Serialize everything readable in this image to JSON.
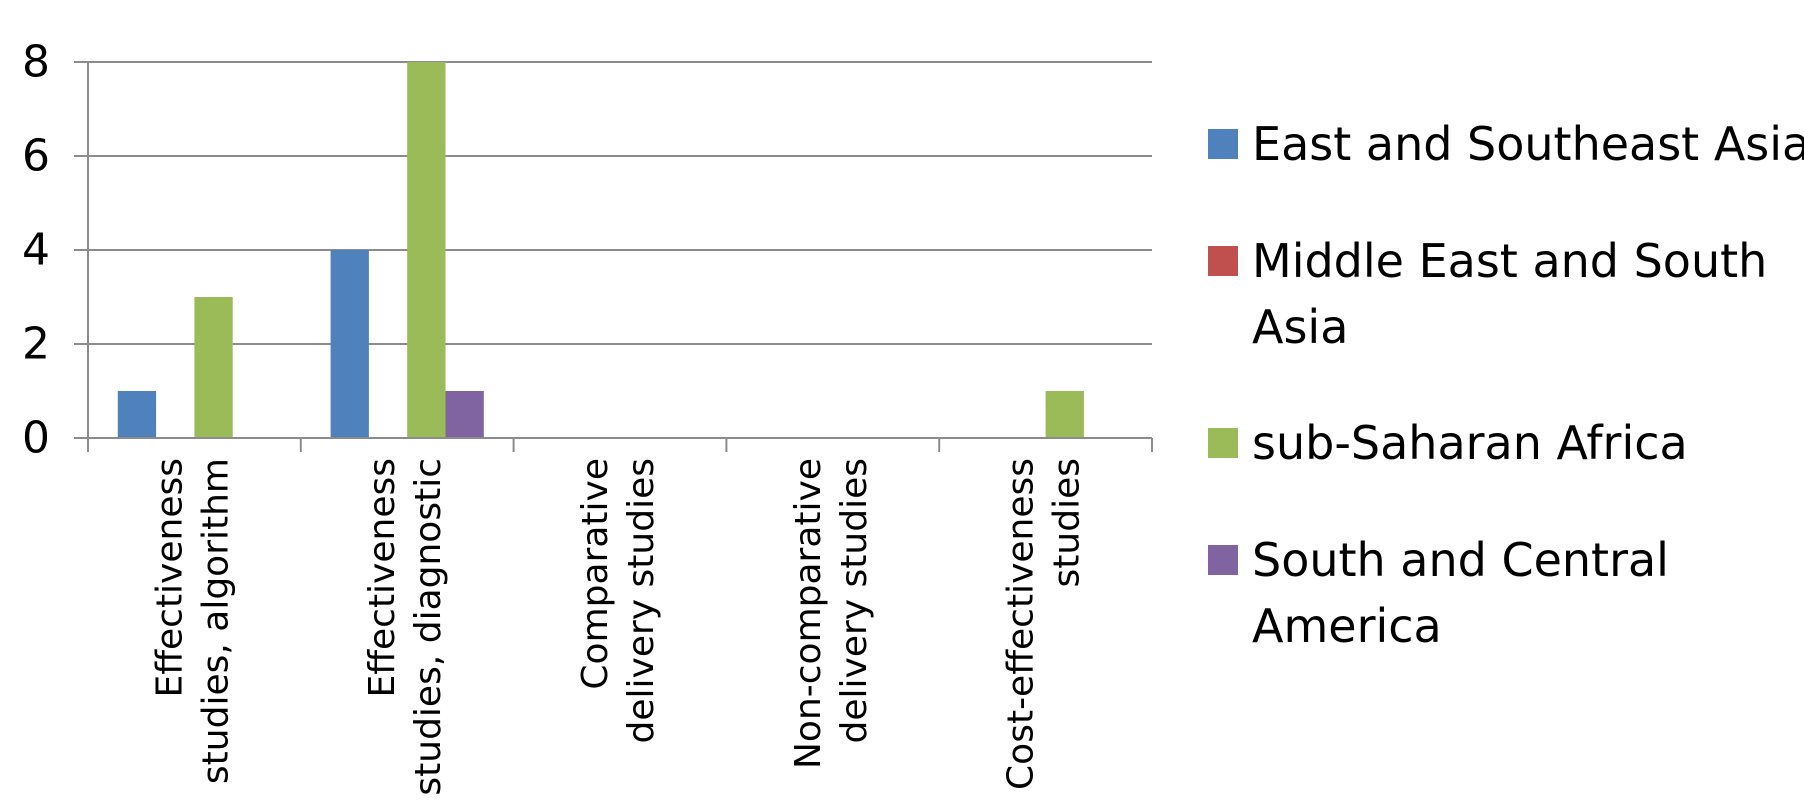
{
  "chart_data": {
    "type": "bar",
    "categories": [
      "Effectiveness studies, algorithm",
      "Effectiveness studies, diagnostic",
      "Comparative delivery studies",
      "Non-comparative delivery studies",
      "Cost-effectiveness studies"
    ],
    "category_lines": [
      [
        "Effectiveness",
        "studies, algorithm"
      ],
      [
        "Effectiveness",
        "studies, diagnostic"
      ],
      [
        "Comparative",
        "delivery studies"
      ],
      [
        "Non-comparative",
        "delivery studies"
      ],
      [
        "Cost-effectiveness",
        "studies"
      ]
    ],
    "series": [
      {
        "name": "East and Southeast Asia",
        "color": "#4F81BD",
        "values": [
          1,
          4,
          0,
          0,
          0
        ],
        "legend_lines": [
          "East and Southeast Asia"
        ]
      },
      {
        "name": "Middle East and South Asia",
        "color": "#C0504D",
        "values": [
          0,
          0,
          0,
          0,
          0
        ],
        "legend_lines": [
          "Middle East and South",
          "Asia"
        ]
      },
      {
        "name": "sub-Saharan Africa",
        "color": "#9BBB59",
        "values": [
          3,
          8,
          0,
          0,
          1
        ],
        "legend_lines": [
          "sub-Saharan Africa"
        ]
      },
      {
        "name": "South and Central America",
        "color": "#8064A2",
        "values": [
          0,
          1,
          0,
          0,
          0
        ],
        "legend_lines": [
          "South and Central",
          "America"
        ]
      }
    ],
    "yticks": [
      0,
      2,
      4,
      6,
      8
    ],
    "ylim": [
      0,
      8
    ],
    "grid": true,
    "legend": "right",
    "title": "",
    "xlabel": "",
    "ylabel": ""
  }
}
